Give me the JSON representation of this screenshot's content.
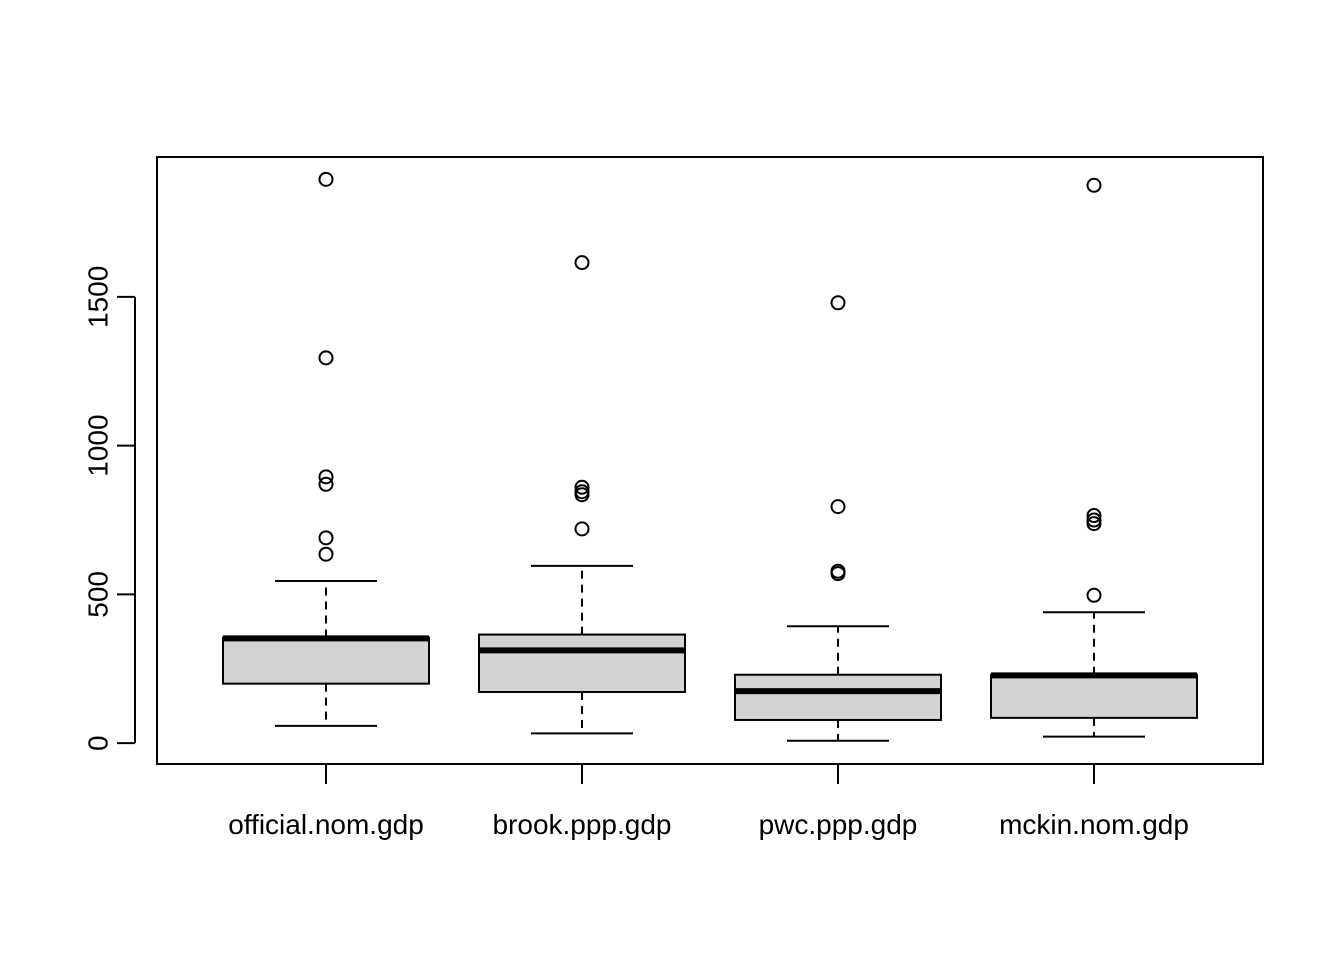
{
  "chart_data": {
    "type": "boxplot",
    "title": "",
    "xlabel": "",
    "ylabel": "",
    "ylim": [
      -70,
      1970
    ],
    "y_ticks": [
      0,
      500,
      1000,
      1500
    ],
    "y_tick_labels": [
      "0",
      "500",
      "1000",
      "1500"
    ],
    "grid": false,
    "colors": {
      "box_fill": "#d3d3d3",
      "line": "#000000"
    },
    "categories": [
      "official.nom.gdp",
      "brook.ppp.gdp",
      "pwc.ppp.gdp",
      "mckin.nom.gdp"
    ],
    "boxes": [
      {
        "whisker_low": 58,
        "q1": 200,
        "median": 352,
        "q3": 355,
        "whisker_high": 545,
        "outliers": [
          1895,
          1295,
          895,
          870,
          690,
          635
        ]
      },
      {
        "whisker_low": 33,
        "q1": 172,
        "median": 312,
        "q3": 365,
        "whisker_high": 596,
        "outliers": [
          1615,
          860,
          845,
          835,
          720
        ]
      },
      {
        "whisker_low": 8,
        "q1": 78,
        "median": 175,
        "q3": 230,
        "whisker_high": 393,
        "outliers": [
          1480,
          795,
          578,
          570
        ]
      },
      {
        "whisker_low": 22,
        "q1": 85,
        "median": 228,
        "q3": 230,
        "whisker_high": 440,
        "outliers": [
          1875,
          765,
          750,
          738,
          497
        ]
      }
    ]
  }
}
